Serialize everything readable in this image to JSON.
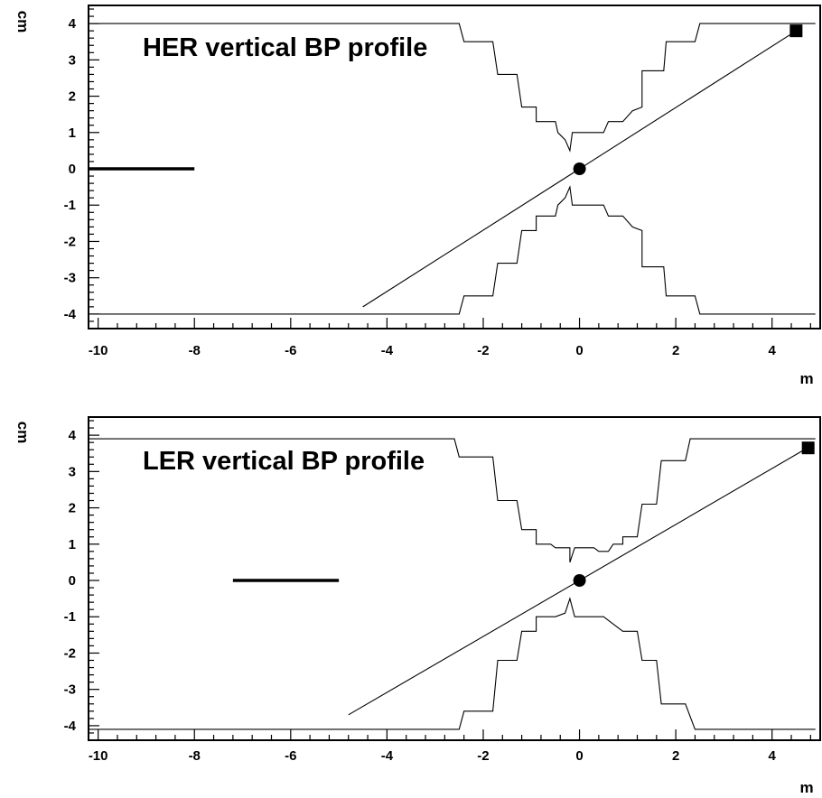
{
  "chart_data": [
    {
      "type": "line",
      "title": "HER vertical BP profile",
      "xlabel": "m",
      "ylabel": "cm",
      "xlim": [
        -10.2,
        5.0
      ],
      "ylim": [
        -4.4,
        4.5
      ],
      "xticks": [
        -10,
        -8,
        -6,
        -4,
        -2,
        0,
        2,
        4
      ],
      "xtick_labels": [
        "-10",
        "-8",
        "-6",
        "-4",
        "-2",
        "0",
        "2",
        "4"
      ],
      "yticks": [
        4,
        3,
        2,
        1,
        0,
        -1,
        -2,
        -3,
        -4
      ],
      "ytick_labels": [
        "4",
        "3",
        "2",
        "1",
        "0",
        "-1",
        "-2",
        "-3",
        "-4"
      ],
      "grid": false,
      "series": [
        {
          "name": "",
          "values": [
            [
              -10.2,
              4.0
            ],
            [
              -2.5,
              4.0
            ],
            [
              -2.4,
              3.5
            ],
            [
              -1.8,
              3.5
            ],
            [
              -1.7,
              2.6
            ],
            [
              -1.3,
              2.6
            ],
            [
              -1.2,
              1.7
            ],
            [
              -0.9,
              1.7
            ],
            [
              -0.9,
              1.3
            ],
            [
              -0.5,
              1.3
            ],
            [
              -0.45,
              1.0
            ],
            [
              -0.3,
              0.8
            ],
            [
              -0.2,
              0.5
            ],
            [
              -0.15,
              1.0
            ],
            [
              0.5,
              1.0
            ],
            [
              0.6,
              1.3
            ],
            [
              0.9,
              1.3
            ],
            [
              1.1,
              1.6
            ],
            [
              1.3,
              1.7
            ],
            [
              1.3,
              2.7
            ],
            [
              1.75,
              2.7
            ],
            [
              1.8,
              3.5
            ],
            [
              2.4,
              3.5
            ],
            [
              2.5,
              4.0
            ],
            [
              4.9,
              4.0
            ]
          ]
        },
        {
          "name": "",
          "values": [
            [
              -10.2,
              -4.0
            ],
            [
              -2.5,
              -4.0
            ],
            [
              -2.4,
              -3.5
            ],
            [
              -1.8,
              -3.5
            ],
            [
              -1.7,
              -2.6
            ],
            [
              -1.3,
              -2.6
            ],
            [
              -1.2,
              -1.7
            ],
            [
              -0.9,
              -1.7
            ],
            [
              -0.9,
              -1.3
            ],
            [
              -0.5,
              -1.3
            ],
            [
              -0.45,
              -1.0
            ],
            [
              -0.3,
              -0.8
            ],
            [
              -0.2,
              -0.5
            ],
            [
              -0.15,
              -1.0
            ],
            [
              0.5,
              -1.0
            ],
            [
              0.6,
              -1.3
            ],
            [
              0.9,
              -1.3
            ],
            [
              1.1,
              -1.6
            ],
            [
              1.3,
              -1.7
            ],
            [
              1.3,
              -2.7
            ],
            [
              1.75,
              -2.7
            ],
            [
              1.8,
              -3.5
            ],
            [
              2.4,
              -3.5
            ],
            [
              2.5,
              -4.0
            ],
            [
              4.9,
              -4.0
            ]
          ]
        },
        {
          "name": "",
          "values": [
            [
              -4.5,
              -3.8
            ],
            [
              4.5,
              3.8
            ]
          ]
        }
      ],
      "segment": [
        [
          -10.2,
          0
        ],
        [
          -8.0,
          0
        ]
      ],
      "points": [
        {
          "marker": "circle",
          "x": 0,
          "y": 0
        },
        {
          "marker": "square",
          "x": 4.5,
          "y": 3.8
        }
      ]
    },
    {
      "type": "line",
      "title": "LER vertical BP profile",
      "xlabel": "m",
      "ylabel": "cm",
      "xlim": [
        -10.2,
        5.0
      ],
      "ylim": [
        -4.4,
        4.5
      ],
      "xticks": [
        -10,
        -8,
        -6,
        -4,
        -2,
        0,
        2,
        4
      ],
      "xtick_labels": [
        "-10",
        "-8",
        "-6",
        "-4",
        "-2",
        "0",
        "2",
        "4"
      ],
      "yticks": [
        4,
        3,
        2,
        1,
        0,
        -1,
        -2,
        -3,
        -4
      ],
      "ytick_labels": [
        "4",
        "3",
        "2",
        "1",
        "0",
        "-1",
        "-2",
        "-3",
        "-4"
      ],
      "grid": false,
      "series": [
        {
          "name": "",
          "values": [
            [
              -10.2,
              3.9
            ],
            [
              -2.6,
              3.9
            ],
            [
              -2.5,
              3.4
            ],
            [
              -1.8,
              3.4
            ],
            [
              -1.7,
              2.2
            ],
            [
              -1.3,
              2.2
            ],
            [
              -1.2,
              1.4
            ],
            [
              -0.9,
              1.4
            ],
            [
              -0.9,
              1.0
            ],
            [
              -0.6,
              1.0
            ],
            [
              -0.5,
              0.9
            ],
            [
              -0.2,
              0.9
            ],
            [
              -0.2,
              0.5
            ],
            [
              -0.1,
              0.9
            ],
            [
              0.3,
              0.9
            ],
            [
              0.4,
              0.8
            ],
            [
              0.6,
              0.8
            ],
            [
              0.7,
              1.0
            ],
            [
              0.9,
              1.0
            ],
            [
              0.9,
              1.2
            ],
            [
              1.2,
              1.2
            ],
            [
              1.3,
              2.1
            ],
            [
              1.6,
              2.1
            ],
            [
              1.7,
              3.3
            ],
            [
              2.2,
              3.3
            ],
            [
              2.3,
              3.9
            ],
            [
              4.9,
              3.9
            ]
          ]
        },
        {
          "name": "",
          "values": [
            [
              -10.2,
              -4.1
            ],
            [
              -2.5,
              -4.1
            ],
            [
              -2.4,
              -3.6
            ],
            [
              -1.8,
              -3.6
            ],
            [
              -1.7,
              -2.2
            ],
            [
              -1.3,
              -2.2
            ],
            [
              -1.2,
              -1.4
            ],
            [
              -0.9,
              -1.4
            ],
            [
              -0.9,
              -1.0
            ],
            [
              -0.5,
              -1.0
            ],
            [
              -0.3,
              -0.9
            ],
            [
              -0.2,
              -0.5
            ],
            [
              -0.1,
              -1.0
            ],
            [
              0.3,
              -1.0
            ],
            [
              0.5,
              -1.0
            ],
            [
              0.7,
              -1.2
            ],
            [
              0.9,
              -1.4
            ],
            [
              1.2,
              -1.4
            ],
            [
              1.3,
              -2.2
            ],
            [
              1.6,
              -2.2
            ],
            [
              1.7,
              -3.4
            ],
            [
              2.2,
              -3.4
            ],
            [
              2.4,
              -4.1
            ],
            [
              4.9,
              -4.1
            ]
          ]
        },
        {
          "name": "",
          "values": [
            [
              -4.8,
              -3.7
            ],
            [
              4.8,
              3.7
            ]
          ]
        }
      ],
      "segment": [
        [
          -7.2,
          0
        ],
        [
          -5.0,
          0
        ]
      ],
      "points": [
        {
          "marker": "circle",
          "x": 0,
          "y": 0
        },
        {
          "marker": "square",
          "x": 4.75,
          "y": 3.65
        }
      ]
    }
  ]
}
